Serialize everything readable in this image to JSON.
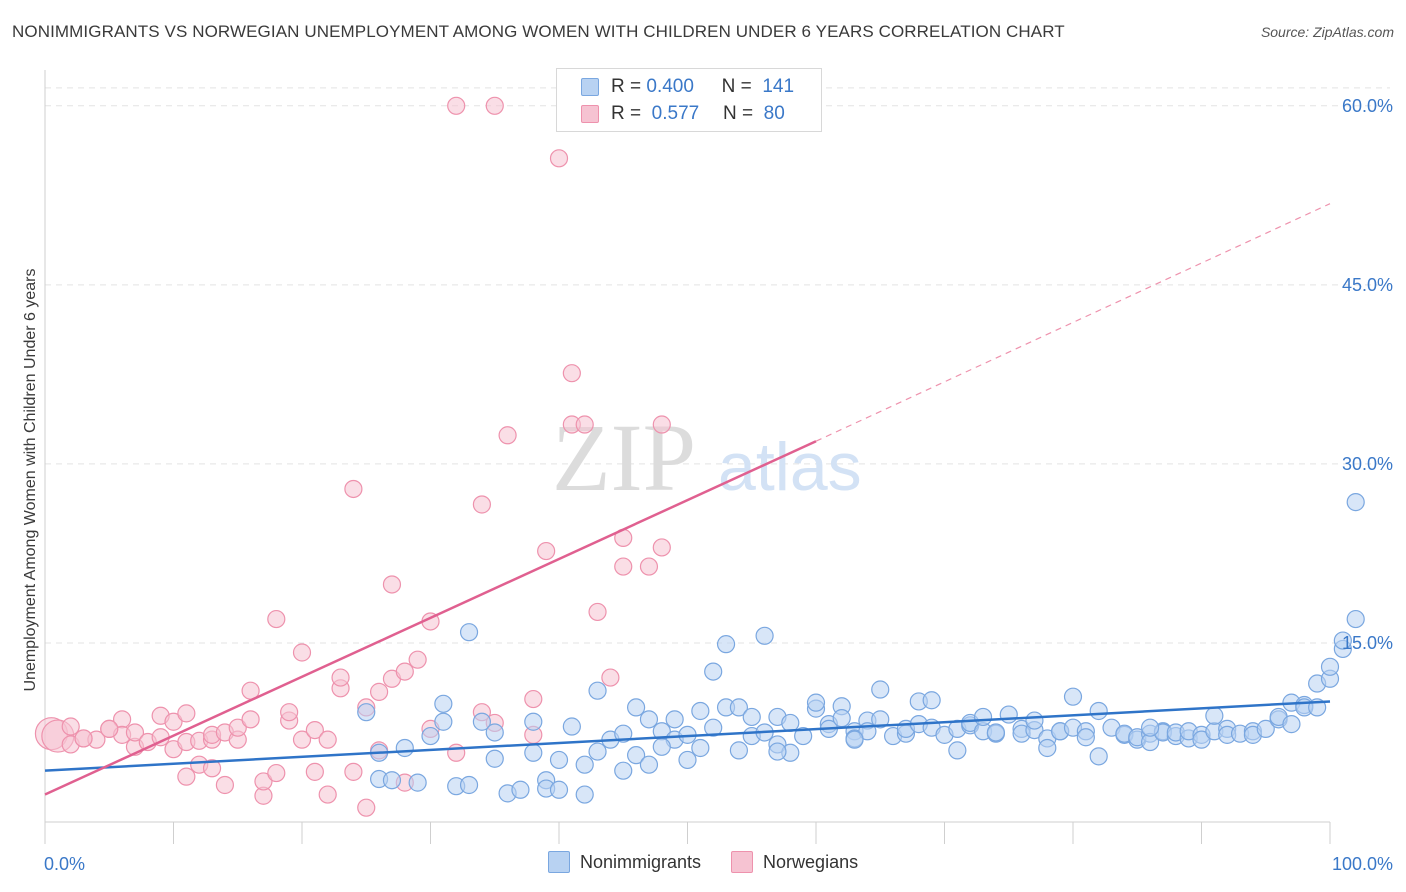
{
  "title": "NONIMMIGRANTS VS NORWEGIAN UNEMPLOYMENT AMONG WOMEN WITH CHILDREN UNDER 6 YEARS CORRELATION CHART",
  "source": "Source: ZipAtlas.com",
  "watermark": {
    "zip": "ZIP",
    "atlas": "atlas"
  },
  "legend_top": [
    {
      "r_label": "R =",
      "r_value": "0.400",
      "n_label": "N =",
      "n_value": "141"
    },
    {
      "r_label": "R =",
      "r_value": "0.577",
      "n_label": "N =",
      "n_value": "80"
    }
  ],
  "colors": {
    "blue_fill": "#b8d2f2",
    "blue_stroke": "#7aa7e0",
    "blue_line": "#2f74c8",
    "pink_fill": "#f6c3d2",
    "pink_stroke": "#ee92ad",
    "pink_line": "#e06090",
    "grid": "#e3e3e3",
    "tick_label": "#3a78c8"
  },
  "chart_data": {
    "type": "scatter",
    "xlabel": "",
    "ylabel": "Unemployment Among Women with Children Under 6 years",
    "xlim": [
      0,
      100
    ],
    "ylim": [
      0,
      63
    ],
    "x_tick_labels": [
      "0.0%",
      "100.0%"
    ],
    "y_ticks": [
      15,
      30,
      45,
      60
    ],
    "y_tick_labels": [
      "15.0%",
      "30.0%",
      "45.0%",
      "60.0%"
    ],
    "grid": true,
    "legend": "bottom-center",
    "series": [
      {
        "name": "Nonimmigrants",
        "r": 0.4,
        "n": 141,
        "trend": {
          "x": [
            0,
            100
          ],
          "y": [
            4.3,
            10.1
          ]
        },
        "points": [
          [
            25,
            9.2
          ],
          [
            26,
            5.8
          ],
          [
            26,
            3.6
          ],
          [
            27,
            3.5
          ],
          [
            28,
            6.2
          ],
          [
            29,
            3.3
          ],
          [
            30,
            7.2
          ],
          [
            31,
            8.4
          ],
          [
            31,
            9.9
          ],
          [
            32,
            3.0
          ],
          [
            33,
            3.1
          ],
          [
            33,
            15.9
          ],
          [
            34,
            8.4
          ],
          [
            35,
            7.5
          ],
          [
            35,
            5.3
          ],
          [
            36,
            2.4
          ],
          [
            37,
            2.7
          ],
          [
            38,
            5.8
          ],
          [
            38,
            8.4
          ],
          [
            39,
            3.5
          ],
          [
            39,
            2.8
          ],
          [
            40,
            5.2
          ],
          [
            40,
            2.7
          ],
          [
            41,
            8.0
          ],
          [
            42,
            2.3
          ],
          [
            42,
            4.8
          ],
          [
            43,
            5.9
          ],
          [
            43,
            11.0
          ],
          [
            44,
            6.9
          ],
          [
            45,
            4.3
          ],
          [
            45,
            7.4
          ],
          [
            46,
            9.6
          ],
          [
            46,
            5.6
          ],
          [
            47,
            8.6
          ],
          [
            47,
            4.8
          ],
          [
            48,
            7.6
          ],
          [
            49,
            6.9
          ],
          [
            49,
            8.6
          ],
          [
            50,
            5.2
          ],
          [
            50,
            7.3
          ],
          [
            51,
            9.3
          ],
          [
            51,
            6.2
          ],
          [
            52,
            7.9
          ],
          [
            52,
            12.6
          ],
          [
            53,
            14.9
          ],
          [
            53,
            9.6
          ],
          [
            54,
            6.0
          ],
          [
            54,
            9.6
          ],
          [
            55,
            7.2
          ],
          [
            55,
            8.8
          ],
          [
            56,
            7.5
          ],
          [
            56,
            15.6
          ],
          [
            57,
            8.8
          ],
          [
            57,
            6.5
          ],
          [
            58,
            8.3
          ],
          [
            58,
            5.8
          ],
          [
            59,
            7.2
          ],
          [
            60,
            9.5
          ],
          [
            60,
            10.0
          ],
          [
            61,
            8.2
          ],
          [
            61,
            7.8
          ],
          [
            62,
            9.7
          ],
          [
            62,
            8.7
          ],
          [
            63,
            7.6
          ],
          [
            63,
            7.0
          ],
          [
            64,
            8.5
          ],
          [
            64,
            7.6
          ],
          [
            65,
            8.6
          ],
          [
            65,
            11.1
          ],
          [
            66,
            7.2
          ],
          [
            67,
            7.4
          ],
          [
            67,
            7.8
          ],
          [
            68,
            8.2
          ],
          [
            68,
            10.1
          ],
          [
            69,
            7.9
          ],
          [
            69,
            10.2
          ],
          [
            70,
            7.3
          ],
          [
            71,
            6.0
          ],
          [
            71,
            7.8
          ],
          [
            72,
            8.1
          ],
          [
            72,
            8.3
          ],
          [
            73,
            7.6
          ],
          [
            73,
            8.8
          ],
          [
            74,
            7.4
          ],
          [
            74,
            7.5
          ],
          [
            75,
            9.0
          ],
          [
            76,
            7.8
          ],
          [
            76,
            7.4
          ],
          [
            77,
            7.7
          ],
          [
            77,
            8.5
          ],
          [
            78,
            7.0
          ],
          [
            78,
            6.2
          ],
          [
            79,
            7.6
          ],
          [
            79,
            7.6
          ],
          [
            80,
            7.9
          ],
          [
            80,
            10.5
          ],
          [
            81,
            7.6
          ],
          [
            81,
            7.1
          ],
          [
            82,
            5.5
          ],
          [
            82,
            9.3
          ],
          [
            83,
            7.9
          ],
          [
            84,
            7.3
          ],
          [
            84,
            7.4
          ],
          [
            85,
            6.9
          ],
          [
            85,
            7.1
          ],
          [
            86,
            7.4
          ],
          [
            86,
            6.7
          ],
          [
            87,
            7.6
          ],
          [
            87,
            7.5
          ],
          [
            88,
            7.2
          ],
          [
            88,
            7.5
          ],
          [
            89,
            7.0
          ],
          [
            89,
            7.6
          ],
          [
            90,
            7.3
          ],
          [
            90,
            6.9
          ],
          [
            91,
            7.6
          ],
          [
            91,
            8.9
          ],
          [
            92,
            7.8
          ],
          [
            92,
            7.3
          ],
          [
            93,
            7.4
          ],
          [
            94,
            7.6
          ],
          [
            94,
            7.3
          ],
          [
            95,
            7.8
          ],
          [
            96,
            8.6
          ],
          [
            96,
            8.8
          ],
          [
            97,
            8.2
          ],
          [
            97,
            10.0
          ],
          [
            98,
            9.8
          ],
          [
            98,
            9.6
          ],
          [
            99,
            9.6
          ],
          [
            99,
            11.6
          ],
          [
            100,
            12.0
          ],
          [
            100,
            13.0
          ],
          [
            101,
            14.5
          ],
          [
            101,
            15.2
          ],
          [
            102,
            17.0
          ],
          [
            102,
            26.8
          ],
          [
            86,
            7.9
          ],
          [
            63,
            6.9
          ],
          [
            57,
            5.9
          ],
          [
            48,
            6.3
          ]
        ]
      },
      {
        "name": "Norwegians",
        "r": 0.577,
        "n": 80,
        "trend": {
          "x": [
            0,
            60
          ],
          "y": [
            2.3,
            31.9
          ]
        },
        "trend_extension": {
          "x": [
            60,
            100
          ],
          "y": [
            31.9,
            51.8
          ]
        },
        "points": [
          [
            0.5,
            7.4
          ],
          [
            1,
            7.2
          ],
          [
            2,
            6.5
          ],
          [
            3,
            7.0
          ],
          [
            4,
            6.9
          ],
          [
            5,
            7.8
          ],
          [
            6,
            8.6
          ],
          [
            6,
            7.3
          ],
          [
            7,
            6.3
          ],
          [
            7,
            7.5
          ],
          [
            8,
            6.7
          ],
          [
            9,
            7.1
          ],
          [
            9,
            8.9
          ],
          [
            10,
            8.4
          ],
          [
            10,
            6.1
          ],
          [
            11,
            6.7
          ],
          [
            11,
            9.1
          ],
          [
            11,
            3.8
          ],
          [
            12,
            4.8
          ],
          [
            12,
            6.8
          ],
          [
            13,
            4.5
          ],
          [
            13,
            6.9
          ],
          [
            13,
            7.3
          ],
          [
            14,
            3.1
          ],
          [
            14,
            7.5
          ],
          [
            15,
            6.9
          ],
          [
            15,
            7.9
          ],
          [
            16,
            8.6
          ],
          [
            16,
            11.0
          ],
          [
            17,
            2.2
          ],
          [
            17,
            3.4
          ],
          [
            18,
            4.1
          ],
          [
            18,
            17.0
          ],
          [
            19,
            8.5
          ],
          [
            19,
            9.2
          ],
          [
            20,
            6.9
          ],
          [
            20,
            14.2
          ],
          [
            21,
            7.7
          ],
          [
            21,
            4.2
          ],
          [
            22,
            6.9
          ],
          [
            22,
            2.3
          ],
          [
            23,
            11.2
          ],
          [
            23,
            12.1
          ],
          [
            24,
            4.2
          ],
          [
            24,
            27.9
          ],
          [
            25,
            9.6
          ],
          [
            25,
            1.2
          ],
          [
            26,
            6.0
          ],
          [
            26,
            10.9
          ],
          [
            27,
            12.0
          ],
          [
            27,
            19.9
          ],
          [
            28,
            3.3
          ],
          [
            28,
            12.6
          ],
          [
            29,
            13.6
          ],
          [
            30,
            16.8
          ],
          [
            30,
            7.8
          ],
          [
            32,
            5.8
          ],
          [
            32,
            60.0
          ],
          [
            34,
            9.2
          ],
          [
            34,
            26.6
          ],
          [
            35,
            8.3
          ],
          [
            35,
            60.0
          ],
          [
            36,
            32.4
          ],
          [
            38,
            10.3
          ],
          [
            38,
            7.3
          ],
          [
            39,
            22.7
          ],
          [
            40,
            55.6
          ],
          [
            41,
            33.3
          ],
          [
            41,
            37.6
          ],
          [
            42,
            33.3
          ],
          [
            43,
            17.6
          ],
          [
            44,
            12.1
          ],
          [
            45,
            23.8
          ],
          [
            45,
            21.4
          ],
          [
            47,
            21.4
          ],
          [
            48,
            23.0
          ],
          [
            48,
            33.3
          ],
          [
            3,
            7.0
          ],
          [
            5,
            7.8
          ],
          [
            2,
            8.0
          ]
        ]
      }
    ]
  }
}
